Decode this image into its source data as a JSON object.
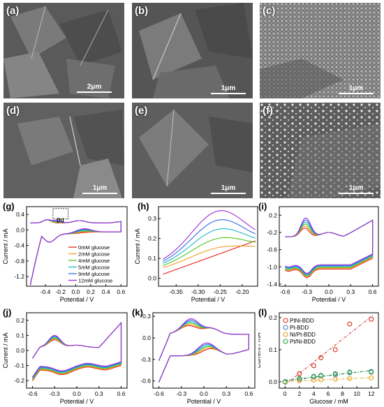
{
  "sem_panels": [
    {
      "label": "(a)",
      "scale": "2μm",
      "bar": 50
    },
    {
      "label": "(b)",
      "scale": "1μm",
      "bar": 50
    },
    {
      "label": "(c)",
      "scale": "1μm",
      "bar": 50
    },
    {
      "label": "(d)",
      "scale": "1μm",
      "bar": 50
    },
    {
      "label": "(e)",
      "scale": "1μm",
      "bar": 50
    },
    {
      "label": "(f)",
      "scale": "1μm",
      "bar": 50
    }
  ],
  "colors": {
    "c1": "#e8231b",
    "c2": "#f59a23",
    "c3": "#52c41a",
    "c4": "#19b6c9",
    "c5": "#2f6ee8",
    "c6": "#a32bd6"
  },
  "chart_data": [
    {
      "panel": "(g)",
      "type": "line",
      "xlabel": "Potential / V",
      "ylabel": "Current / mA",
      "xticks": [
        "-0.4",
        "-0.2",
        "0.0",
        "0.2",
        "0.4",
        "0.6"
      ],
      "yticks": [
        "0.4",
        "0.0",
        "-0.4",
        "-0.8",
        "-1.2"
      ],
      "xlim": [
        -0.65,
        0.68
      ],
      "ylim": [
        -1.45,
        0.6
      ],
      "inset_label": "(h)",
      "legend": [
        "0mM glucose",
        "2mM glucose",
        "4mM glucose",
        "5mM glucose",
        "9mM glucose",
        "12mM glucose"
      ]
    },
    {
      "panel": "(h)",
      "type": "line",
      "xlabel": "Potential / V",
      "ylabel": "Current / mA",
      "xticks": [
        "-0.35",
        "-0.30",
        "-0.25",
        "-0.20"
      ],
      "yticks": [
        "0.3",
        "0.2",
        "0.1",
        "0.0"
      ],
      "xlim": [
        -0.39,
        -0.165
      ],
      "ylim": [
        -0.04,
        0.36
      ]
    },
    {
      "panel": "(i)",
      "type": "line",
      "xlabel": "Potential / V",
      "ylabel": "",
      "xticks": [
        "-0.6",
        "-0.3",
        "0.0",
        "0.3",
        "0.6"
      ],
      "yticks": [
        "0.2",
        "-0.2",
        "-0.6",
        "-1.0",
        "-1.4"
      ],
      "xlim": [
        -0.68,
        0.68
      ],
      "ylim": [
        -1.45,
        0.4
      ]
    },
    {
      "panel": "(j)",
      "type": "line",
      "xlabel": "Potential / V",
      "ylabel": "Current / mA",
      "xticks": [
        "-0.6",
        "-0.3",
        "0.0",
        "0.3",
        "0.6"
      ],
      "yticks": [
        "0.2",
        "0.1",
        "0.0",
        "-0.1",
        "-0.2"
      ],
      "xlim": [
        -0.68,
        0.68
      ],
      "ylim": [
        -0.25,
        0.25
      ]
    },
    {
      "panel": "(k)",
      "type": "line",
      "xlabel": "Potential / V",
      "ylabel": "",
      "xticks": [
        "-0.6",
        "-0.3",
        "0.0",
        "0.3",
        "0.6"
      ],
      "yticks": [
        "0.3",
        "0.0",
        "-0.3",
        "-0.6"
      ],
      "xlim": [
        -0.68,
        0.68
      ],
      "ylim": [
        -0.7,
        0.35
      ]
    },
    {
      "panel": "(l)",
      "type": "scatter",
      "xlabel": "Glucose / mM",
      "ylabel": "Current / mA",
      "xticks": [
        "0",
        "2",
        "4",
        "6",
        "8",
        "10",
        "12"
      ],
      "yticks": [
        "0.2",
        "0.1",
        "0.0"
      ],
      "xlim": [
        -0.8,
        13
      ],
      "ylim": [
        -0.02,
        0.215
      ],
      "series": [
        {
          "name": "PtNi-BDD",
          "color": "#d62b1f",
          "x": [
            0,
            2,
            4,
            5,
            7,
            9,
            12
          ],
          "y": [
            0.0,
            0.025,
            0.05,
            0.075,
            0.1,
            0.18,
            0.195
          ]
        },
        {
          "name": "Pt-BDD",
          "color": "#4a7fc1",
          "x": [
            0,
            2,
            4,
            5,
            7,
            9,
            12
          ],
          "y": [
            0.0,
            0.008,
            0.015,
            0.018,
            0.022,
            0.028,
            0.032
          ]
        },
        {
          "name": "Ni/Pt-BDD",
          "color": "#e8a21a",
          "x": [
            0,
            2,
            4,
            5,
            7,
            9,
            12
          ],
          "y": [
            0.0,
            0.003,
            0.005,
            0.006,
            0.008,
            0.01,
            0.012
          ]
        },
        {
          "name": "Pt/Ni-BDD",
          "color": "#2f9e3a",
          "x": [
            0,
            2,
            4,
            5,
            7,
            9,
            12
          ],
          "y": [
            0.0,
            0.01,
            0.017,
            0.02,
            0.025,
            0.03,
            0.03
          ]
        }
      ]
    }
  ]
}
